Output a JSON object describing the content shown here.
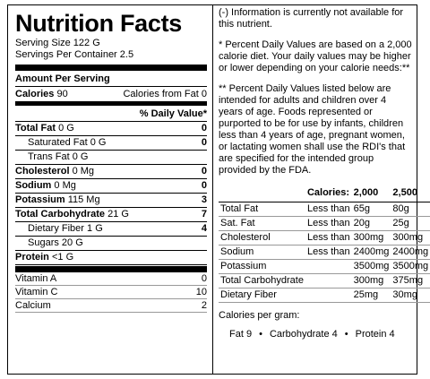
{
  "title": "Nutrition Facts",
  "serving_size": "Serving Size 122 G",
  "servings_per_container": "Servings Per Container 2.5",
  "amount_per_serving": "Amount Per Serving",
  "calories": {
    "label": "Calories",
    "value": "90",
    "from_fat": "Calories from Fat 0"
  },
  "daily_value_header": "% Daily Value*",
  "nutrients": [
    {
      "name": "Total Fat",
      "amount": "0 G",
      "dv": "0",
      "bold": true
    },
    {
      "name": "Saturated Fat",
      "amount": "0 G",
      "dv": "0",
      "bold": false
    },
    {
      "name": "Trans Fat",
      "amount": "0 G",
      "bold": false
    },
    {
      "name": "Cholesterol",
      "amount": "0 Mg",
      "dv": "0",
      "bold": true
    },
    {
      "name": "Sodium",
      "amount": "0 Mg",
      "dv": "0",
      "bold": true
    },
    {
      "name": "Potassium",
      "amount": "115 Mg",
      "dv": "3",
      "bold": true
    },
    {
      "name": "Total Carbohydrate",
      "amount": "21 G",
      "dv": "7",
      "bold": true
    },
    {
      "name": "Dietary Fiber",
      "amount": "1 G",
      "dv": "4",
      "bold": false
    },
    {
      "name": "Sugars",
      "amount": "20 G",
      "bold": false
    },
    {
      "name": "Protein",
      "amount": "<1 G",
      "bold": true
    }
  ],
  "vitamins": [
    {
      "name": "Vitamin A",
      "dv": "0"
    },
    {
      "name": "Vitamin C",
      "dv": "10"
    },
    {
      "name": "Calcium",
      "dv": "2"
    }
  ],
  "notes": [
    "(-) Information is currently not available for this nutrient.",
    "* Percent Daily Values are based on a 2,000 calorie diet. Your daily values may be higher or lower depending on your calorie needs:**",
    "** Percent Daily Values listed below are intended for adults and children over 4 years of age. Foods represented or purported to be for use by infants, children less than 4 years of age, pregnant women, or lactating women shall use the RDI's that are specified for the intended group provided by the FDA."
  ],
  "dv_table": {
    "header": [
      "Calories:",
      "2,000",
      "2,500"
    ],
    "rows": [
      [
        "Total Fat",
        "Less than",
        "65g",
        "80g"
      ],
      [
        "Sat. Fat",
        "Less than",
        "20g",
        "25g"
      ],
      [
        "Cholesterol",
        "Less than",
        "300mg",
        "300mg"
      ],
      [
        "Sodium",
        "Less than",
        "2400mg",
        "2400mg"
      ],
      [
        "Potassium",
        "",
        "3500mg",
        "3500mg"
      ],
      [
        "Total Carbohydrate",
        "",
        "300mg",
        "375mg"
      ],
      [
        "Dietary Fiber",
        "",
        "25mg",
        "30mg"
      ]
    ]
  },
  "calories_per_gram": {
    "label": "Calories per gram:",
    "items": [
      "Fat 9",
      "Carbohydrate 4",
      "Protein 4"
    ]
  }
}
